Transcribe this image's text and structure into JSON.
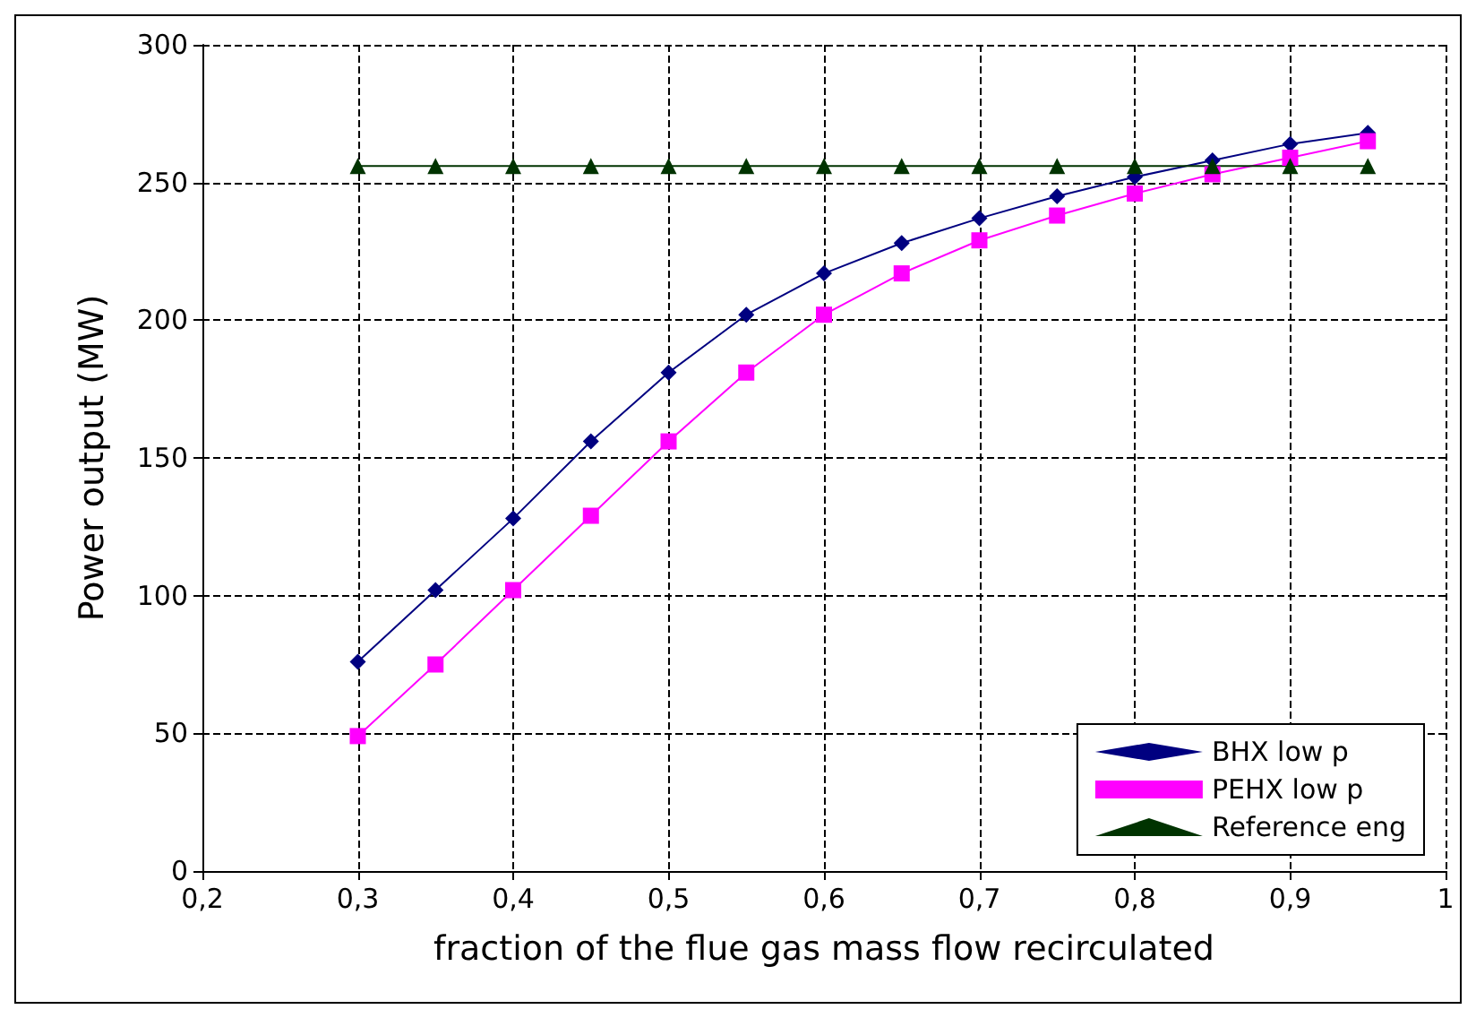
{
  "chart_data": {
    "type": "line",
    "xlabel": "fraction of the flue gas mass flow recirculated",
    "ylabel": "Power output (MW)",
    "x": [
      0.3,
      0.35,
      0.4,
      0.45,
      0.5,
      0.55,
      0.6,
      0.65,
      0.7,
      0.75,
      0.8,
      0.85,
      0.9,
      0.95
    ],
    "series": [
      {
        "name": "BHX low p",
        "color": "#000080",
        "marker": "diamond",
        "values": [
          76,
          102,
          128,
          156,
          181,
          202,
          217,
          228,
          237,
          245,
          252,
          258,
          264,
          268
        ]
      },
      {
        "name": "PEHX low p",
        "color": "#ff00ff",
        "marker": "square",
        "values": [
          49,
          75,
          102,
          129,
          156,
          181,
          202,
          217,
          229,
          238,
          246,
          253,
          259,
          265
        ]
      },
      {
        "name": "Reference eng",
        "color": "#003300",
        "marker": "triangle",
        "values": [
          256,
          256,
          256,
          256,
          256,
          256,
          256,
          256,
          256,
          256,
          256,
          256,
          256,
          256
        ]
      }
    ],
    "xlim": [
      0.2,
      1
    ],
    "xticks": [
      {
        "value": 0.2,
        "label": "0,2"
      },
      {
        "value": 0.3,
        "label": "0,3"
      },
      {
        "value": 0.4,
        "label": "0,4"
      },
      {
        "value": 0.5,
        "label": "0,5"
      },
      {
        "value": 0.6,
        "label": "0,6"
      },
      {
        "value": 0.7,
        "label": "0,7"
      },
      {
        "value": 0.8,
        "label": "0,8"
      },
      {
        "value": 0.9,
        "label": "0,9"
      },
      {
        "value": 1,
        "label": "1"
      }
    ],
    "ylim": [
      0,
      300
    ],
    "yticks": [
      0,
      50,
      100,
      150,
      200,
      250,
      300
    ],
    "grid": true,
    "legend": "bottom right",
    "line_style": "solid"
  }
}
